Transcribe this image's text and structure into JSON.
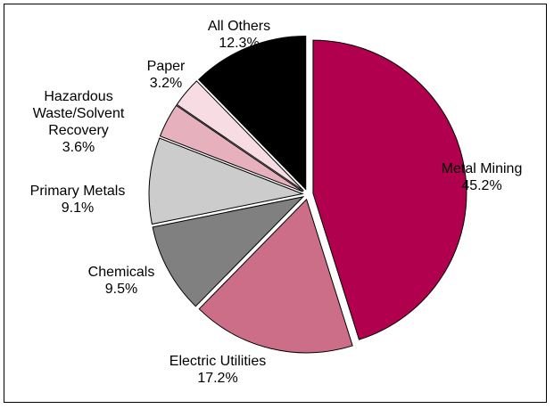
{
  "chart_data": {
    "type": "pie",
    "title": "",
    "slices": [
      {
        "name": "Metal Mining",
        "value": 45.2,
        "label": "45.2%",
        "color": "#b0004e",
        "label_lines": [
          "Metal Mining"
        ]
      },
      {
        "name": "Electric Utilities",
        "value": 17.2,
        "label": "17.2%",
        "color": "#cc6e87",
        "label_lines": [
          "Electric Utilities"
        ]
      },
      {
        "name": "Chemicals",
        "value": 9.5,
        "label": "9.5%",
        "color": "#808080",
        "label_lines": [
          "Chemicals"
        ]
      },
      {
        "name": "Primary Metals",
        "value": 9.1,
        "label": "9.1%",
        "color": "#cccccc",
        "label_lines": [
          "Primary Metals"
        ]
      },
      {
        "name": "Hazardous Waste/Solvent Recovery",
        "value": 3.6,
        "label": "3.6%",
        "color": "#e6b0bc",
        "label_lines": [
          "Hazardous",
          "Waste/Solvent",
          "Recovery"
        ]
      },
      {
        "name": "Paper",
        "value": 3.2,
        "label": "3.2%",
        "color": "#f7dde3",
        "label_lines": [
          "Paper"
        ]
      },
      {
        "name": "All Others",
        "value": 12.3,
        "label": "12.3%",
        "color": "#000000",
        "label_lines": [
          "All Others"
        ]
      }
    ],
    "start_angle_deg": 0,
    "direction": "clockwise",
    "exploded": true,
    "legend": "none"
  }
}
